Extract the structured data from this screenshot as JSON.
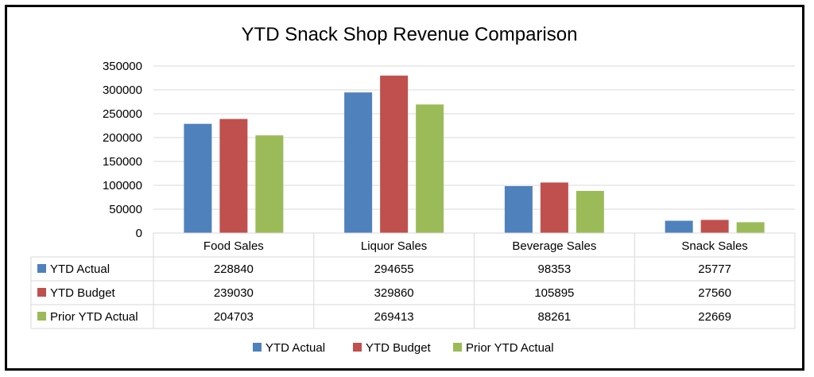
{
  "chart_data": {
    "type": "bar",
    "title": "YTD Snack Shop Revenue Comparison",
    "categories": [
      "Food Sales",
      "Liquor Sales",
      "Beverage Sales",
      "Snack Sales"
    ],
    "series": [
      {
        "name": "YTD Actual",
        "color": "#4F81BD",
        "values": [
          228840,
          294655,
          98353,
          25777
        ]
      },
      {
        "name": "YTD Budget",
        "color": "#C0504D",
        "values": [
          239030,
          329860,
          105895,
          27560
        ]
      },
      {
        "name": "Prior YTD Actual",
        "color": "#9BBB59",
        "values": [
          204703,
          269413,
          88261,
          22669
        ]
      }
    ],
    "yticks": [
      "0",
      "50000",
      "100000",
      "150000",
      "200000",
      "250000",
      "300000",
      "350000"
    ],
    "ylim": [
      0,
      350000
    ],
    "grid": true,
    "legend": "bottom",
    "data_table": true
  }
}
